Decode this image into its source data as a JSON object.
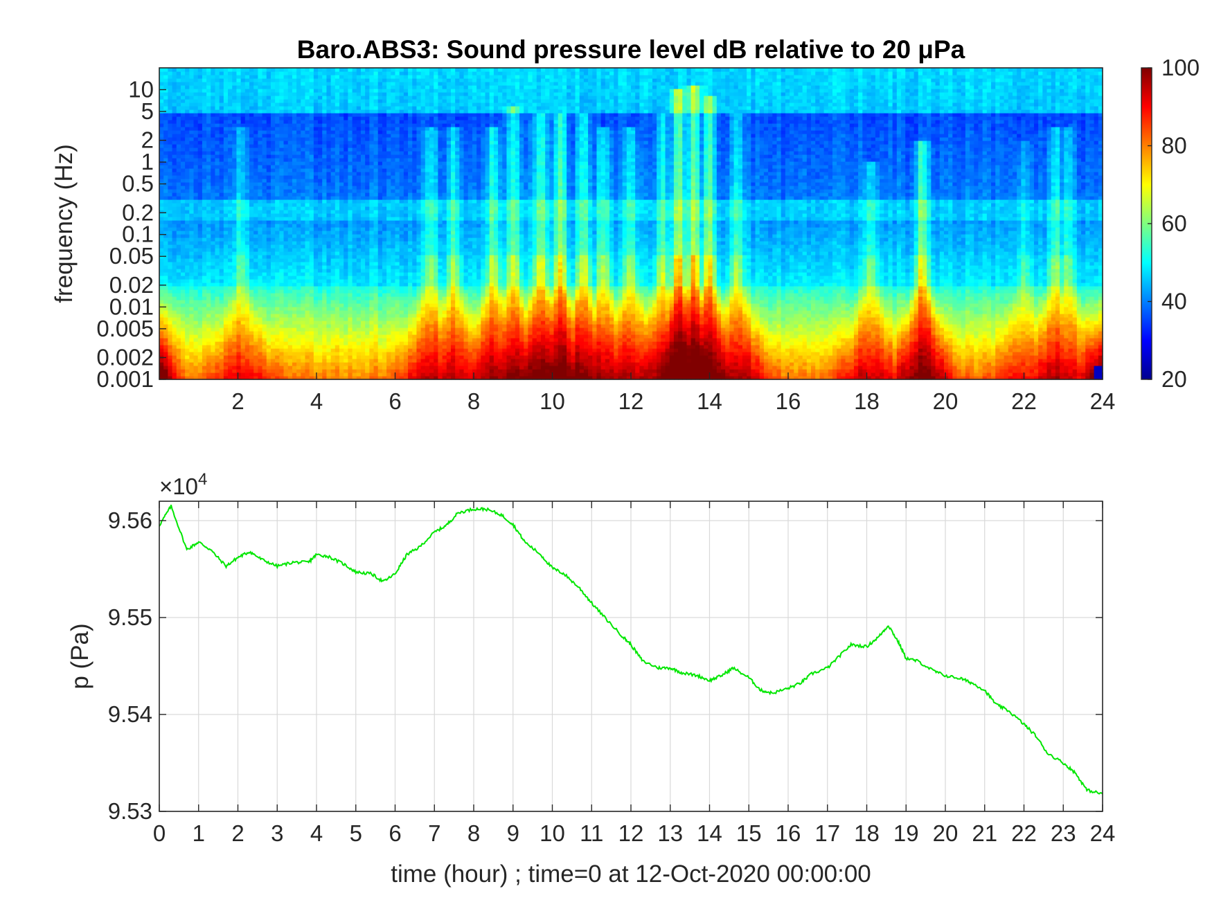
{
  "chart_data": [
    {
      "type": "heatmap",
      "title": "Baro.ABS3: Sound pressure level dB relative to 20 μPa",
      "xlabel": "",
      "ylabel": "frequency (Hz)",
      "xlim": [
        0,
        24
      ],
      "ylim": [
        0.001,
        20
      ],
      "yscale": "log",
      "x_ticks": [
        "2",
        "4",
        "6",
        "8",
        "10",
        "12",
        "14",
        "16",
        "18",
        "20",
        "22",
        "24"
      ],
      "y_ticks": [
        "0.001",
        "0.002",
        "0.005",
        "0.01",
        "0.02",
        "0.05",
        "0.1",
        "0.2",
        "0.5",
        "1",
        "2",
        "5",
        "10"
      ],
      "colormap": "jet",
      "colorbar": {
        "range": [
          20,
          100
        ],
        "ticks": [
          "20",
          "40",
          "60",
          "80",
          "100"
        ]
      },
      "events": [
        {
          "hour": 2.1,
          "strength": 0.4,
          "top_hz": 3
        },
        {
          "hour": 6.9,
          "strength": 0.5,
          "top_hz": 3
        },
        {
          "hour": 7.5,
          "strength": 0.55,
          "top_hz": 3
        },
        {
          "hour": 8.5,
          "strength": 0.6,
          "top_hz": 3
        },
        {
          "hour": 9.0,
          "strength": 0.65,
          "top_hz": 6
        },
        {
          "hour": 9.7,
          "strength": 0.75,
          "top_hz": 5
        },
        {
          "hour": 10.2,
          "strength": 0.8,
          "top_hz": 5
        },
        {
          "hour": 10.8,
          "strength": 0.75,
          "top_hz": 5
        },
        {
          "hour": 11.3,
          "strength": 0.6,
          "top_hz": 3
        },
        {
          "hour": 12.0,
          "strength": 0.55,
          "top_hz": 3
        },
        {
          "hour": 12.8,
          "strength": 0.65,
          "top_hz": 5
        },
        {
          "hour": 13.2,
          "strength": 1.0,
          "top_hz": 10
        },
        {
          "hour": 13.6,
          "strength": 0.95,
          "top_hz": 12
        },
        {
          "hour": 14.0,
          "strength": 0.85,
          "top_hz": 8
        },
        {
          "hour": 14.7,
          "strength": 0.6,
          "top_hz": 5
        },
        {
          "hour": 18.1,
          "strength": 0.5,
          "top_hz": 1
        },
        {
          "hour": 19.4,
          "strength": 0.75,
          "top_hz": 2
        },
        {
          "hour": 22.0,
          "strength": 0.35,
          "top_hz": 2
        },
        {
          "hour": 22.8,
          "strength": 0.55,
          "top_hz": 3
        },
        {
          "hour": 23.1,
          "strength": 0.45,
          "top_hz": 3
        }
      ]
    },
    {
      "type": "line",
      "title": "",
      "xlabel": "time (hour) ; time=0 at 12-Oct-2020 00:00:00",
      "ylabel": "p (Pa)",
      "xlim": [
        0,
        24
      ],
      "ylim": [
        95300,
        95620
      ],
      "y_exponent_label": "×10",
      "y_exponent": "4",
      "x_ticks": [
        "0",
        "1",
        "2",
        "3",
        "4",
        "5",
        "6",
        "7",
        "8",
        "9",
        "10",
        "11",
        "12",
        "13",
        "14",
        "15",
        "16",
        "17",
        "18",
        "19",
        "20",
        "21",
        "22",
        "23",
        "24"
      ],
      "y_ticks": [
        "9.53",
        "9.54",
        "9.55",
        "9.56"
      ],
      "grid": true,
      "line_color": "#00e600",
      "series": [
        {
          "x": [
            0,
            0.3,
            0.7,
            1.0,
            1.3,
            1.7,
            2.0,
            2.3,
            2.6,
            3.0,
            3.4,
            3.8,
            4.0,
            4.3,
            4.7,
            5.0,
            5.4,
            5.7,
            6.0,
            6.3,
            6.6,
            7.0,
            7.3,
            7.6,
            8.0,
            8.3,
            8.7,
            9.0,
            9.3,
            9.7,
            10.0,
            10.3,
            10.7,
            11.0,
            11.4,
            11.8,
            12.0,
            12.3,
            12.7,
            13.0,
            13.3,
            13.7,
            14.0,
            14.3,
            14.6,
            15.0,
            15.3,
            15.6,
            16.0,
            16.3,
            16.6,
            17.0,
            17.3,
            17.6,
            18.0,
            18.3,
            18.55,
            18.8,
            19.0,
            19.3,
            19.7,
            20.0,
            20.4,
            20.7,
            21.0,
            21.3,
            21.6,
            22.0,
            22.3,
            22.6,
            23.0,
            23.3,
            23.6,
            24.0
          ],
          "y": [
            95595,
            95615,
            95570,
            95578,
            95570,
            95553,
            95562,
            95568,
            95560,
            95553,
            95557,
            95557,
            95565,
            95563,
            95555,
            95547,
            95545,
            95537,
            95545,
            95565,
            95572,
            95588,
            95595,
            95608,
            95612,
            95612,
            95606,
            95596,
            95578,
            95565,
            95551,
            95545,
            95530,
            95515,
            95497,
            95480,
            95472,
            95455,
            95448,
            95448,
            95443,
            95440,
            95435,
            95440,
            95448,
            95438,
            95425,
            95422,
            95427,
            95432,
            95442,
            95448,
            95460,
            95472,
            95470,
            95480,
            95492,
            95475,
            95458,
            95455,
            95445,
            95440,
            95437,
            95432,
            95425,
            95410,
            95404,
            95390,
            95378,
            95360,
            95350,
            95340,
            95322,
            95318
          ]
        }
      ]
    }
  ]
}
